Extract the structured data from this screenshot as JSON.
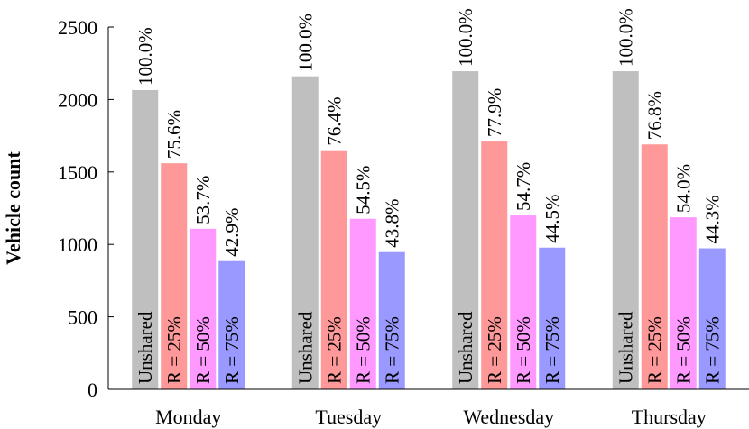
{
  "chart_data": {
    "type": "bar",
    "categories": [
      "Monday",
      "Tuesday",
      "Wednesday",
      "Thursday"
    ],
    "ylabel": "Vehicle count",
    "ylim": [
      0,
      2500
    ],
    "yticks": [
      "0",
      "500",
      "1000",
      "1500",
      "2000",
      "2500"
    ],
    "grid": false,
    "series": [
      {
        "name": "Unshared",
        "color": "#bfbfbf",
        "values": [
          2065,
          2160,
          2195,
          2195
        ],
        "labels": [
          "100.0%",
          "100.0%",
          "100.0%",
          "100.0%"
        ]
      },
      {
        "name": "R = 25%",
        "color": "#ff9999",
        "values": [
          1560,
          1650,
          1710,
          1690
        ],
        "labels": [
          "75.6%",
          "76.4%",
          "77.9%",
          "76.8%"
        ]
      },
      {
        "name": "R = 50%",
        "color": "#ff99ff",
        "values": [
          1108,
          1177,
          1200,
          1187
        ],
        "labels": [
          "53.7%",
          "54.5%",
          "54.7%",
          "54.0%"
        ]
      },
      {
        "name": "R = 75%",
        "color": "#9999ff",
        "values": [
          885,
          947,
          978,
          973
        ],
        "labels": [
          "42.9%",
          "43.8%",
          "44.5%",
          "44.3%"
        ]
      }
    ]
  }
}
